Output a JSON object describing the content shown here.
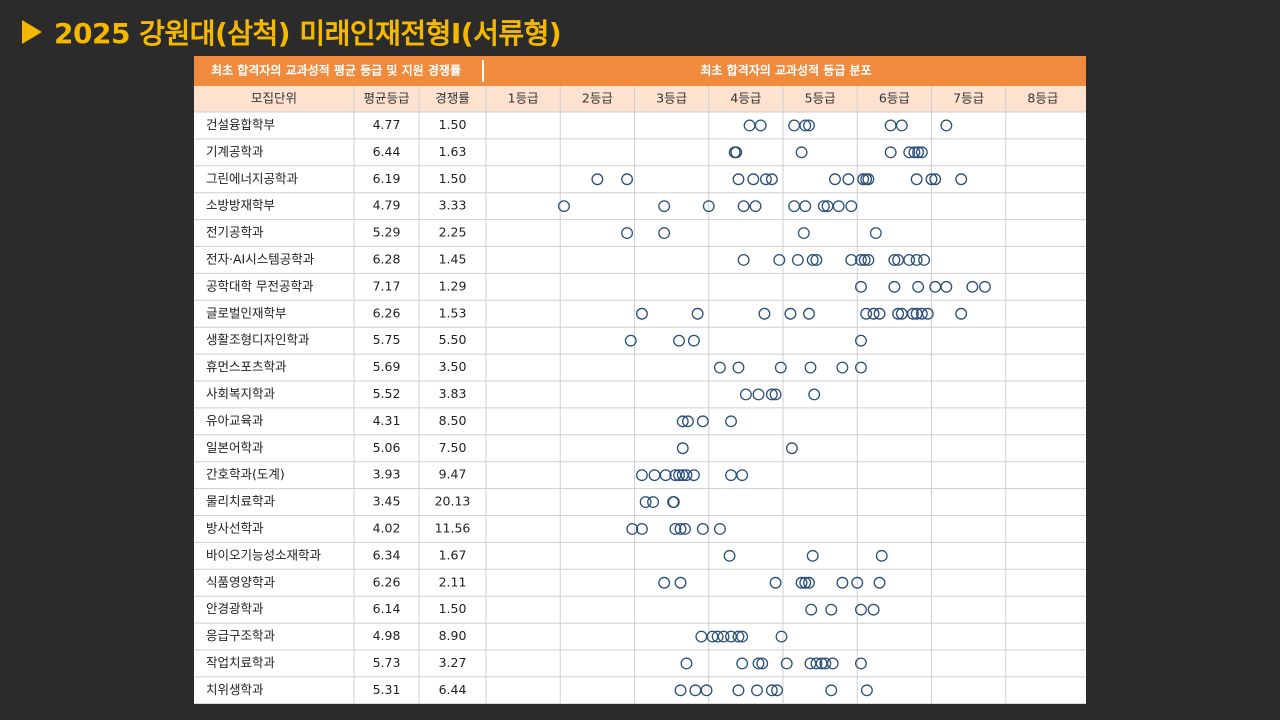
{
  "title": "2025 강원대(삼척) 미래인재전형I(서류형)",
  "colors": {
    "accent": "#f5b800",
    "header_bg": "#f08a3c",
    "subheader_bg": "#fde3cf",
    "dot": "#2a4f7a",
    "grid": "#cfcfcf"
  },
  "chart_data": {
    "type": "scatter",
    "header_left": "최초 합격자의 교과성적 평균 등급 및 지원 경쟁률",
    "header_right": "최초 합격자의 교과성적 등급 분포",
    "columns": [
      "모집단위",
      "평균등급",
      "경쟁률"
    ],
    "grade_labels": [
      "1등급",
      "2등급",
      "3등급",
      "4등급",
      "5등급",
      "6등급",
      "7등급",
      "8등급"
    ],
    "xlim": [
      1,
      9
    ],
    "rows": [
      {
        "name": "건설융합학부",
        "avg": "4.77",
        "rate": "1.50",
        "dots": [
          4.55,
          4.7,
          5.15,
          5.3,
          5.35,
          6.45,
          6.6,
          7.2
        ]
      },
      {
        "name": "기계공학과",
        "avg": "6.44",
        "rate": "1.63",
        "dots": [
          4.35,
          4.37,
          5.25,
          6.45,
          6.7,
          6.77,
          6.82,
          6.87
        ]
      },
      {
        "name": "그린에너지공학과",
        "avg": "6.19",
        "rate": "1.50",
        "dots": [
          2.5,
          2.9,
          4.4,
          4.6,
          4.77,
          4.85,
          5.7,
          5.88,
          6.08,
          6.12,
          6.15,
          6.8,
          7.0,
          7.05,
          7.4
        ]
      },
      {
        "name": "소방방재학부",
        "avg": "4.79",
        "rate": "3.33",
        "dots": [
          2.05,
          3.4,
          4.0,
          4.47,
          4.63,
          5.15,
          5.3,
          5.55,
          5.6,
          5.75,
          5.92
        ]
      },
      {
        "name": "전기공학과",
        "avg": "5.29",
        "rate": "2.25",
        "dots": [
          2.9,
          3.4,
          5.28,
          6.25
        ]
      },
      {
        "name": "전자·AI시스템공학과",
        "avg": "6.28",
        "rate": "1.45",
        "dots": [
          4.47,
          4.95,
          5.2,
          5.4,
          5.45,
          5.92,
          6.05,
          6.1,
          6.15,
          6.5,
          6.55,
          6.7,
          6.8,
          6.9
        ]
      },
      {
        "name": "공학대학 무전공학과",
        "avg": "7.17",
        "rate": "1.29",
        "dots": [
          6.05,
          6.5,
          6.82,
          7.05,
          7.2,
          7.55,
          7.72
        ]
      },
      {
        "name": "글로벌인재학부",
        "avg": "6.26",
        "rate": "1.53",
        "dots": [
          3.1,
          3.85,
          4.75,
          5.1,
          5.35,
          6.12,
          6.22,
          6.3,
          6.55,
          6.6,
          6.75,
          6.8,
          6.87,
          6.95,
          7.4
        ]
      },
      {
        "name": "생활조형디자인학과",
        "avg": "5.75",
        "rate": "5.50",
        "dots": [
          2.95,
          3.6,
          3.8,
          6.05
        ]
      },
      {
        "name": "휴먼스포츠학과",
        "avg": "5.69",
        "rate": "3.50",
        "dots": [
          4.15,
          4.4,
          4.97,
          5.37,
          5.8,
          6.05
        ]
      },
      {
        "name": "사회복지학과",
        "avg": "5.52",
        "rate": "3.83",
        "dots": [
          4.5,
          4.67,
          4.85,
          4.9,
          5.42
        ]
      },
      {
        "name": "유아교육과",
        "avg": "4.31",
        "rate": "8.50",
        "dots": [
          3.65,
          3.72,
          3.92,
          4.3
        ]
      },
      {
        "name": "일본어학과",
        "avg": "5.06",
        "rate": "7.50",
        "dots": [
          3.65,
          5.12
        ]
      },
      {
        "name": "간호학과(도계)",
        "avg": "3.93",
        "rate": "9.47",
        "dots": [
          3.1,
          3.27,
          3.42,
          3.55,
          3.6,
          3.65,
          3.7,
          3.8,
          4.3,
          4.45
        ]
      },
      {
        "name": "물리치료학과",
        "avg": "3.45",
        "rate": "20.13",
        "dots": [
          3.15,
          3.25,
          3.52,
          3.53
        ]
      },
      {
        "name": "방사선학과",
        "avg": "4.02",
        "rate": "11.56",
        "dots": [
          2.97,
          3.1,
          3.55,
          3.62,
          3.68,
          3.92,
          4.15
        ]
      },
      {
        "name": "바이오기능성소재학과",
        "avg": "6.34",
        "rate": "1.67",
        "dots": [
          4.28,
          5.4,
          6.33
        ]
      },
      {
        "name": "식품영양학과",
        "avg": "6.26",
        "rate": "2.11",
        "dots": [
          3.4,
          3.62,
          4.9,
          5.25,
          5.3,
          5.35,
          5.8,
          6.0,
          6.3
        ]
      },
      {
        "name": "안경광학과",
        "avg": "6.14",
        "rate": "1.50",
        "dots": [
          5.38,
          5.65,
          6.05,
          6.22
        ]
      },
      {
        "name": "응급구조학과",
        "avg": "4.98",
        "rate": "8.90",
        "dots": [
          3.9,
          4.05,
          4.12,
          4.2,
          4.3,
          4.4,
          4.45,
          4.98
        ]
      },
      {
        "name": "작업치료학과",
        "avg": "5.73",
        "rate": "3.27",
        "dots": [
          3.7,
          4.45,
          4.67,
          4.72,
          5.05,
          5.37,
          5.45,
          5.52,
          5.57,
          5.67,
          6.05
        ]
      },
      {
        "name": "치위생학과",
        "avg": "5.31",
        "rate": "6.44",
        "dots": [
          3.62,
          3.82,
          3.97,
          4.4,
          4.65,
          4.85,
          4.92,
          5.65,
          6.13
        ]
      }
    ]
  }
}
